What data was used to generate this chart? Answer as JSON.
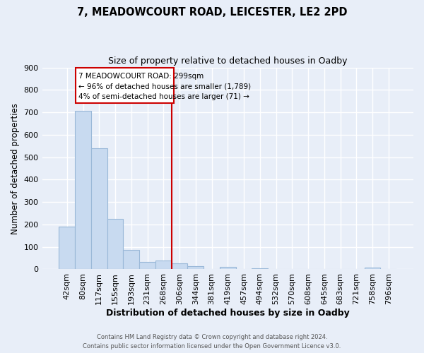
{
  "title": "7, MEADOWCOURT ROAD, LEICESTER, LE2 2PD",
  "subtitle": "Size of property relative to detached houses in Oadby",
  "xlabel": "Distribution of detached houses by size in Oadby",
  "ylabel": "Number of detached properties",
  "bin_labels": [
    "42sqm",
    "80sqm",
    "117sqm",
    "155sqm",
    "193sqm",
    "231sqm",
    "268sqm",
    "306sqm",
    "344sqm",
    "381sqm",
    "419sqm",
    "457sqm",
    "494sqm",
    "532sqm",
    "570sqm",
    "608sqm",
    "645sqm",
    "683sqm",
    "721sqm",
    "758sqm",
    "796sqm"
  ],
  "bar_heights": [
    190,
    707,
    540,
    225,
    88,
    32,
    40,
    27,
    14,
    0,
    11,
    0,
    5,
    0,
    0,
    0,
    0,
    0,
    0,
    8,
    0
  ],
  "bar_color": "#c8daf0",
  "bar_edge_color": "#9ab8d8",
  "vline_color": "#cc0000",
  "annotation_box_color": "#ffffff",
  "annotation_box_edge": "#cc0000",
  "ylim": [
    0,
    900
  ],
  "yticks": [
    0,
    100,
    200,
    300,
    400,
    500,
    600,
    700,
    800,
    900
  ],
  "footer_line1": "Contains HM Land Registry data © Crown copyright and database right 2024.",
  "footer_line2": "Contains public sector information licensed under the Open Government Licence v3.0.",
  "bg_color": "#e8eef8",
  "grid_color": "#ffffff",
  "ann_line1": "7 MEADOWCOURT ROAD: 299sqm",
  "ann_line2": "← 96% of detached houses are smaller (1,789)",
  "ann_line3": "4% of semi-detached houses are larger (71) →",
  "vline_bin_index": 7.0
}
